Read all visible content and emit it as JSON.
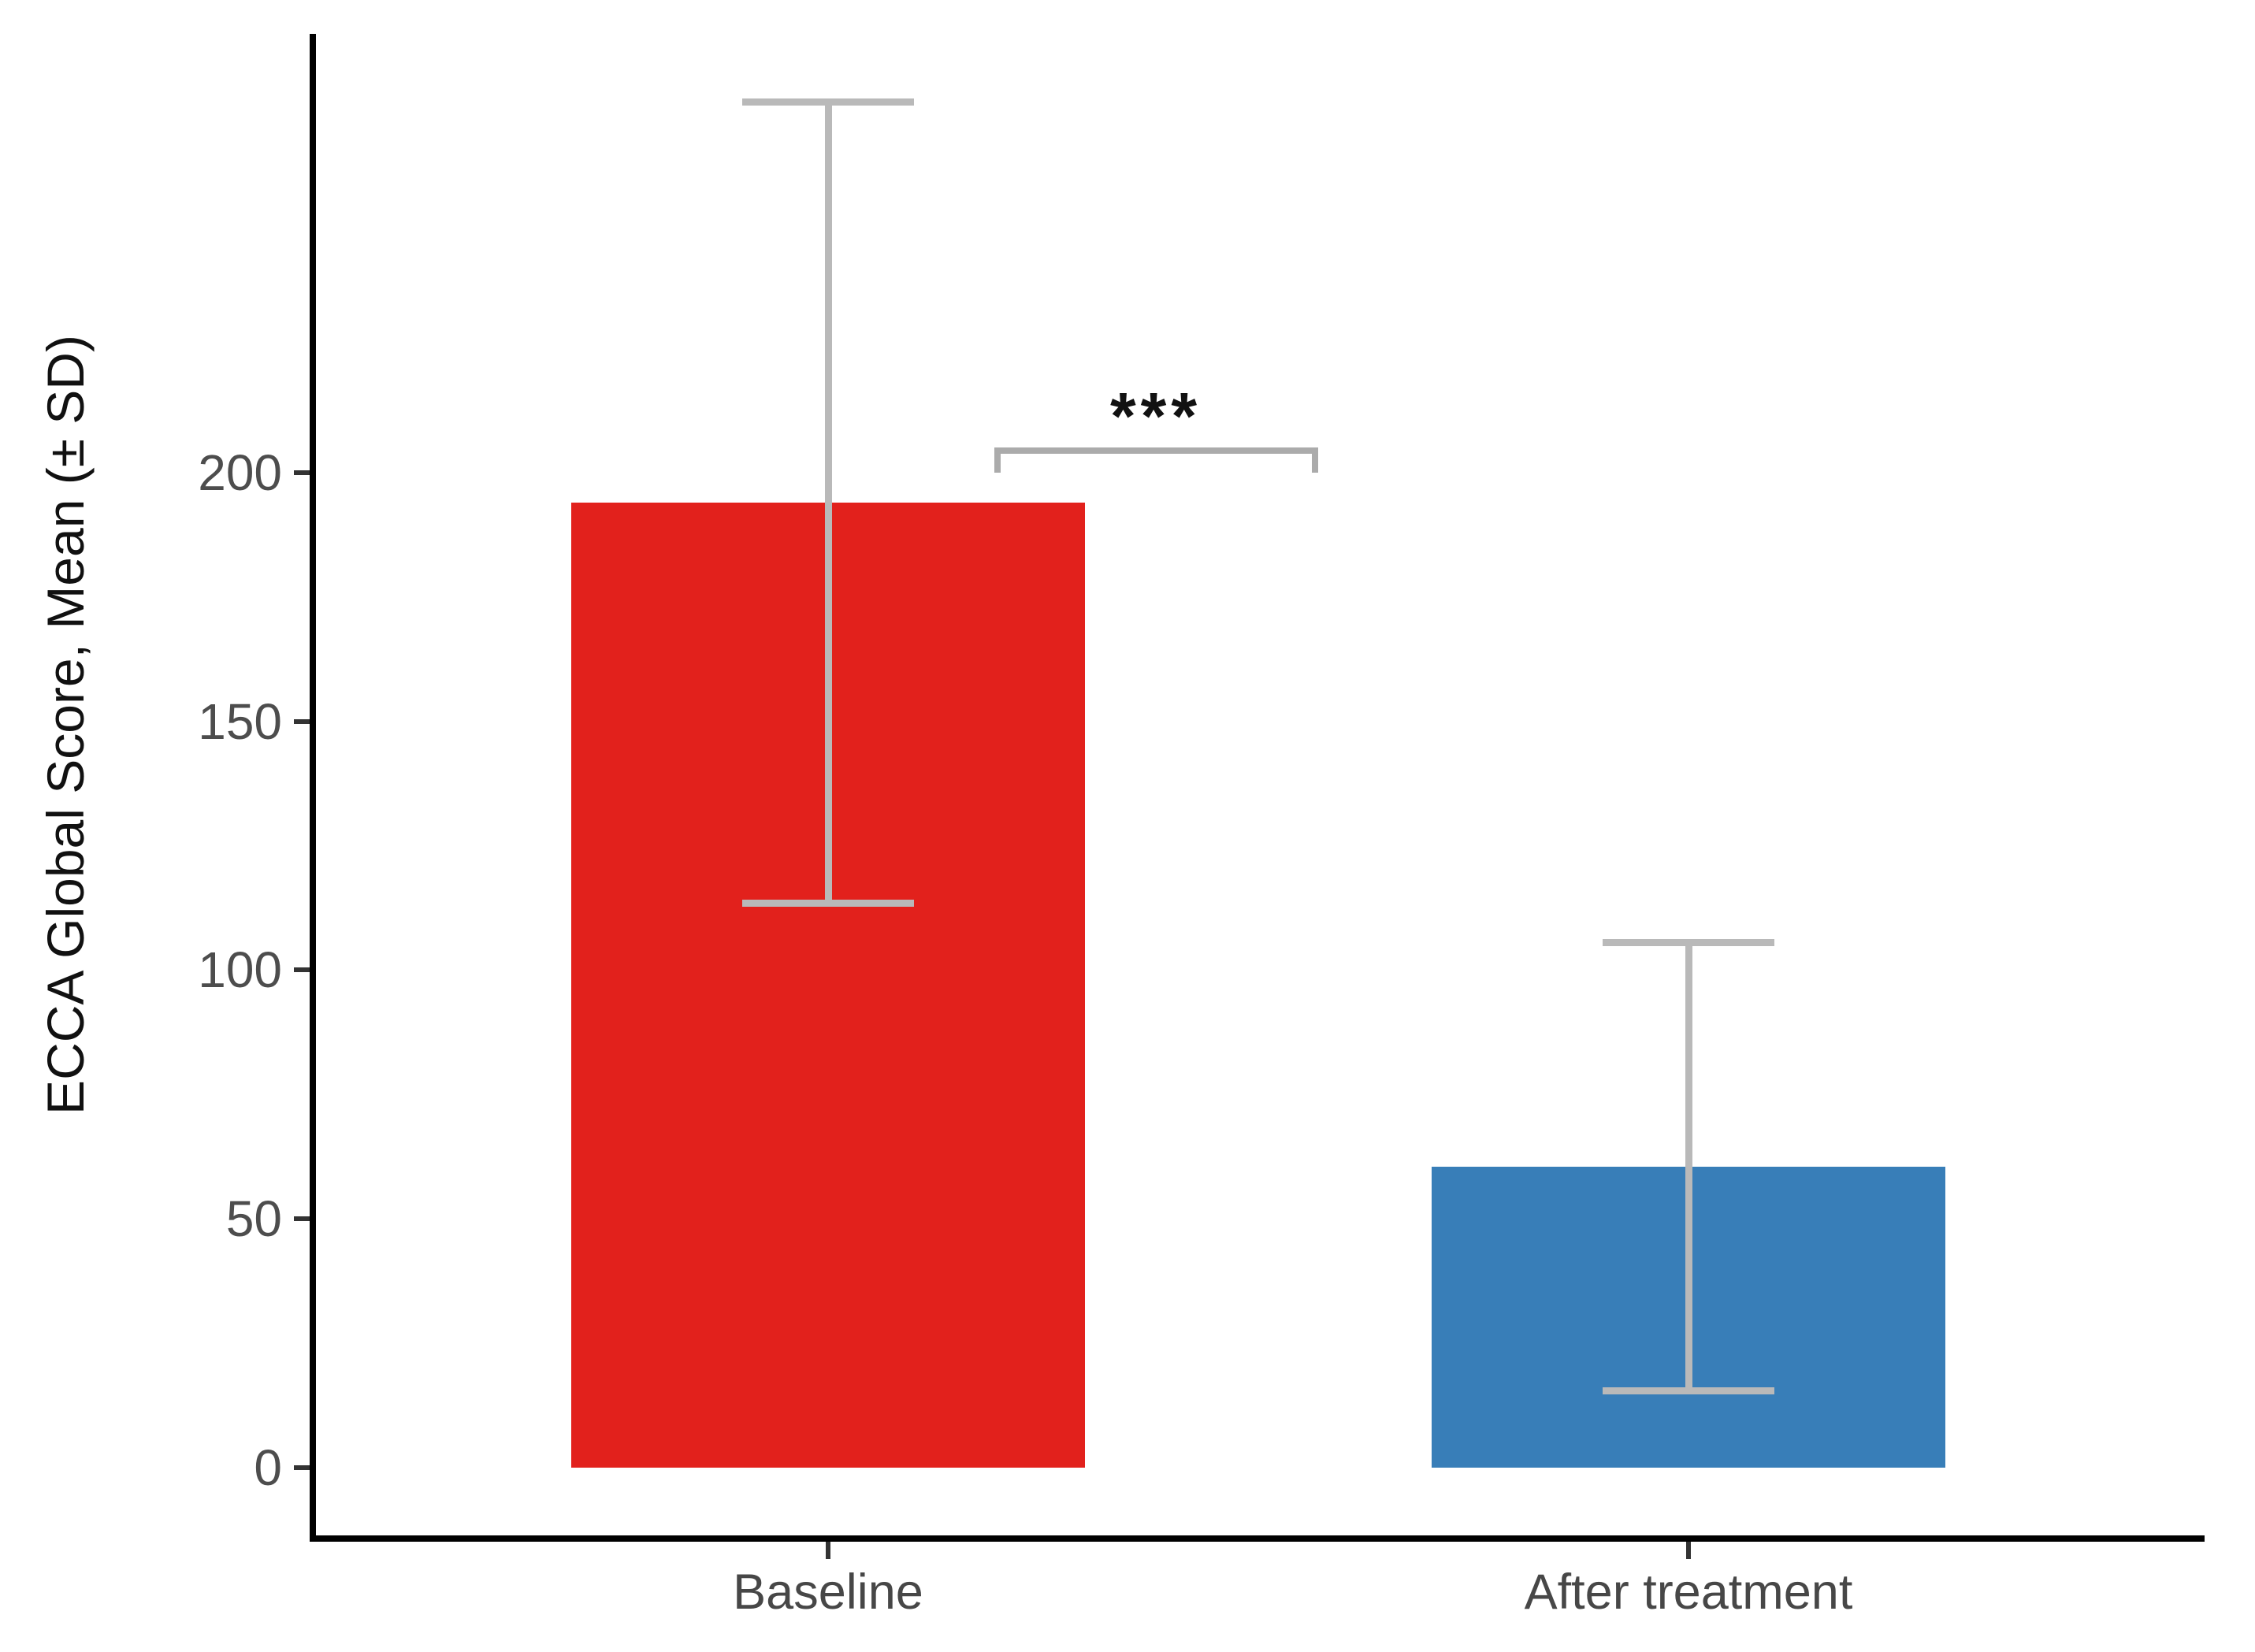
{
  "chart_data": {
    "type": "bar",
    "title": "",
    "xlabel": "",
    "ylabel": "ECCA Global Score, Mean (± SD)",
    "categories": [
      "Baseline",
      "After treatment"
    ],
    "values": [
      194,
      60.5
    ],
    "error_sd": [
      80.5,
      45
    ],
    "error_upper": [
      274.5,
      105.5
    ],
    "error_lower": [
      113.5,
      15.5
    ],
    "bar_colors": [
      "#e2211c",
      "#387eb8"
    ],
    "error_bar_color": "#b9b9b9",
    "y_ticks": [
      0,
      50,
      100,
      150,
      200
    ],
    "ylim": [
      0,
      290
    ],
    "grid": false,
    "legend": false,
    "significance": {
      "label": "***",
      "between": [
        "Baseline",
        "After treatment"
      ]
    }
  }
}
